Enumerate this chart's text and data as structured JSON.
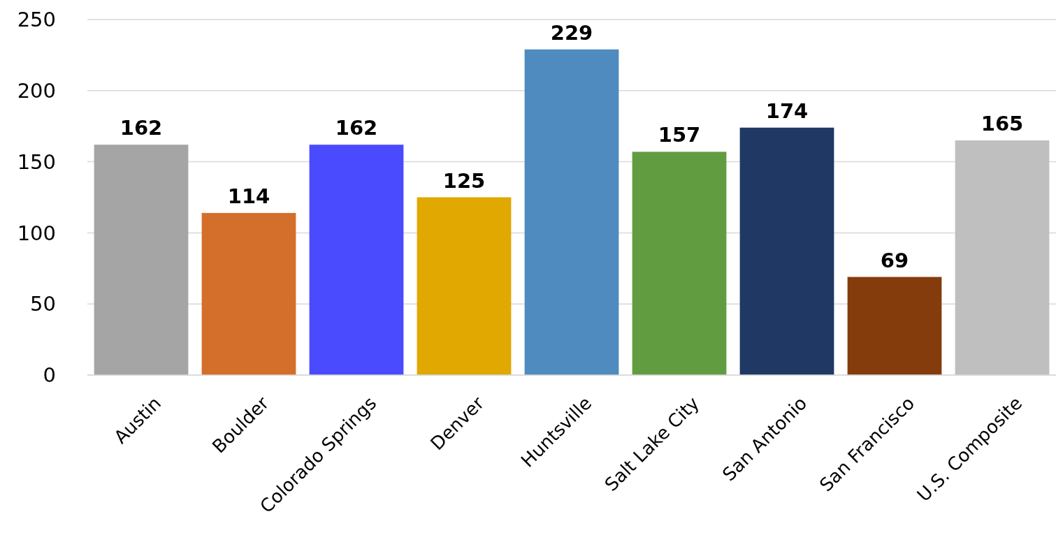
{
  "chart_data": {
    "type": "bar",
    "categories": [
      "Austin",
      "Boulder",
      "Colorado Springs",
      "Denver",
      "Huntsville",
      "Salt Lake City",
      "San Antonio",
      "San Francisco",
      "U.S. Composite"
    ],
    "values": [
      162,
      114,
      162,
      125,
      229,
      157,
      174,
      69,
      165
    ],
    "colors": [
      "#a5a5a5",
      "#d46e2b",
      "#4a4aff",
      "#e0a800",
      "#4f8bbf",
      "#629c40",
      "#203864",
      "#843c0c",
      "#bfbfbf"
    ],
    "ylim": [
      0,
      250
    ],
    "yticks": [
      0,
      50,
      100,
      150,
      200,
      250
    ],
    "grid": "y",
    "data_labels": true
  }
}
